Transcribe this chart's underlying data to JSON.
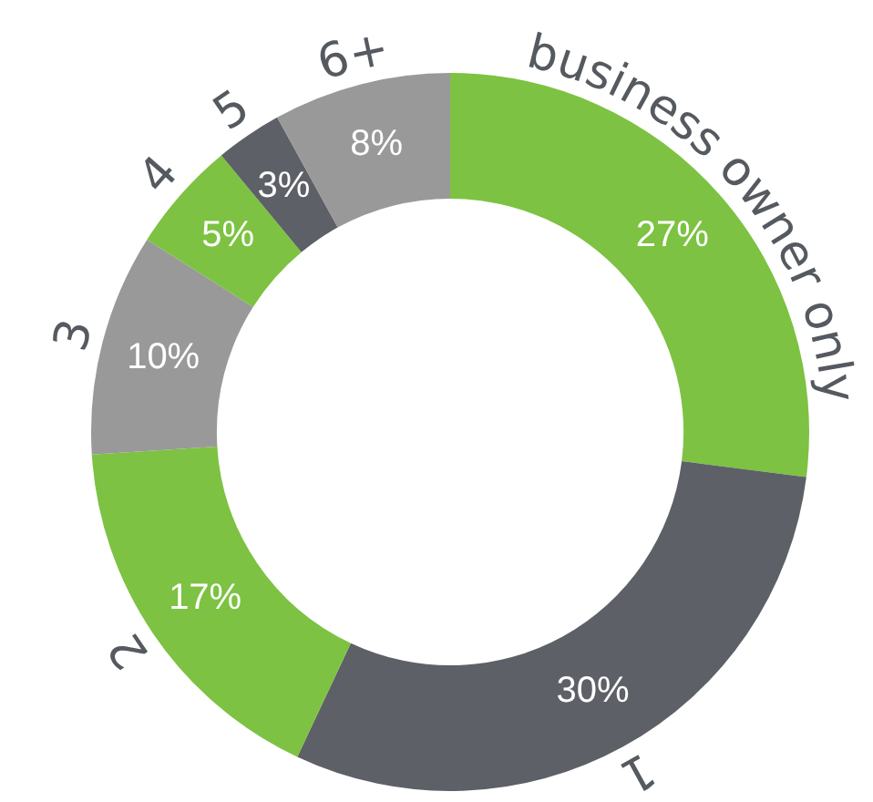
{
  "chart_data": {
    "type": "donut",
    "categories": [
      "business owner only",
      "1",
      "2",
      "3",
      "4",
      "5",
      "6+"
    ],
    "values": [
      27,
      30,
      17,
      10,
      5,
      3,
      8
    ],
    "colors": [
      "#7dc242",
      "#5d6066",
      "#7dc242",
      "#999999",
      "#7dc242",
      "#5d6066",
      "#999999"
    ],
    "value_labels": [
      "27%",
      "30%",
      "17%",
      "10%",
      "5%",
      "3%",
      "8%"
    ],
    "legend": false
  }
}
